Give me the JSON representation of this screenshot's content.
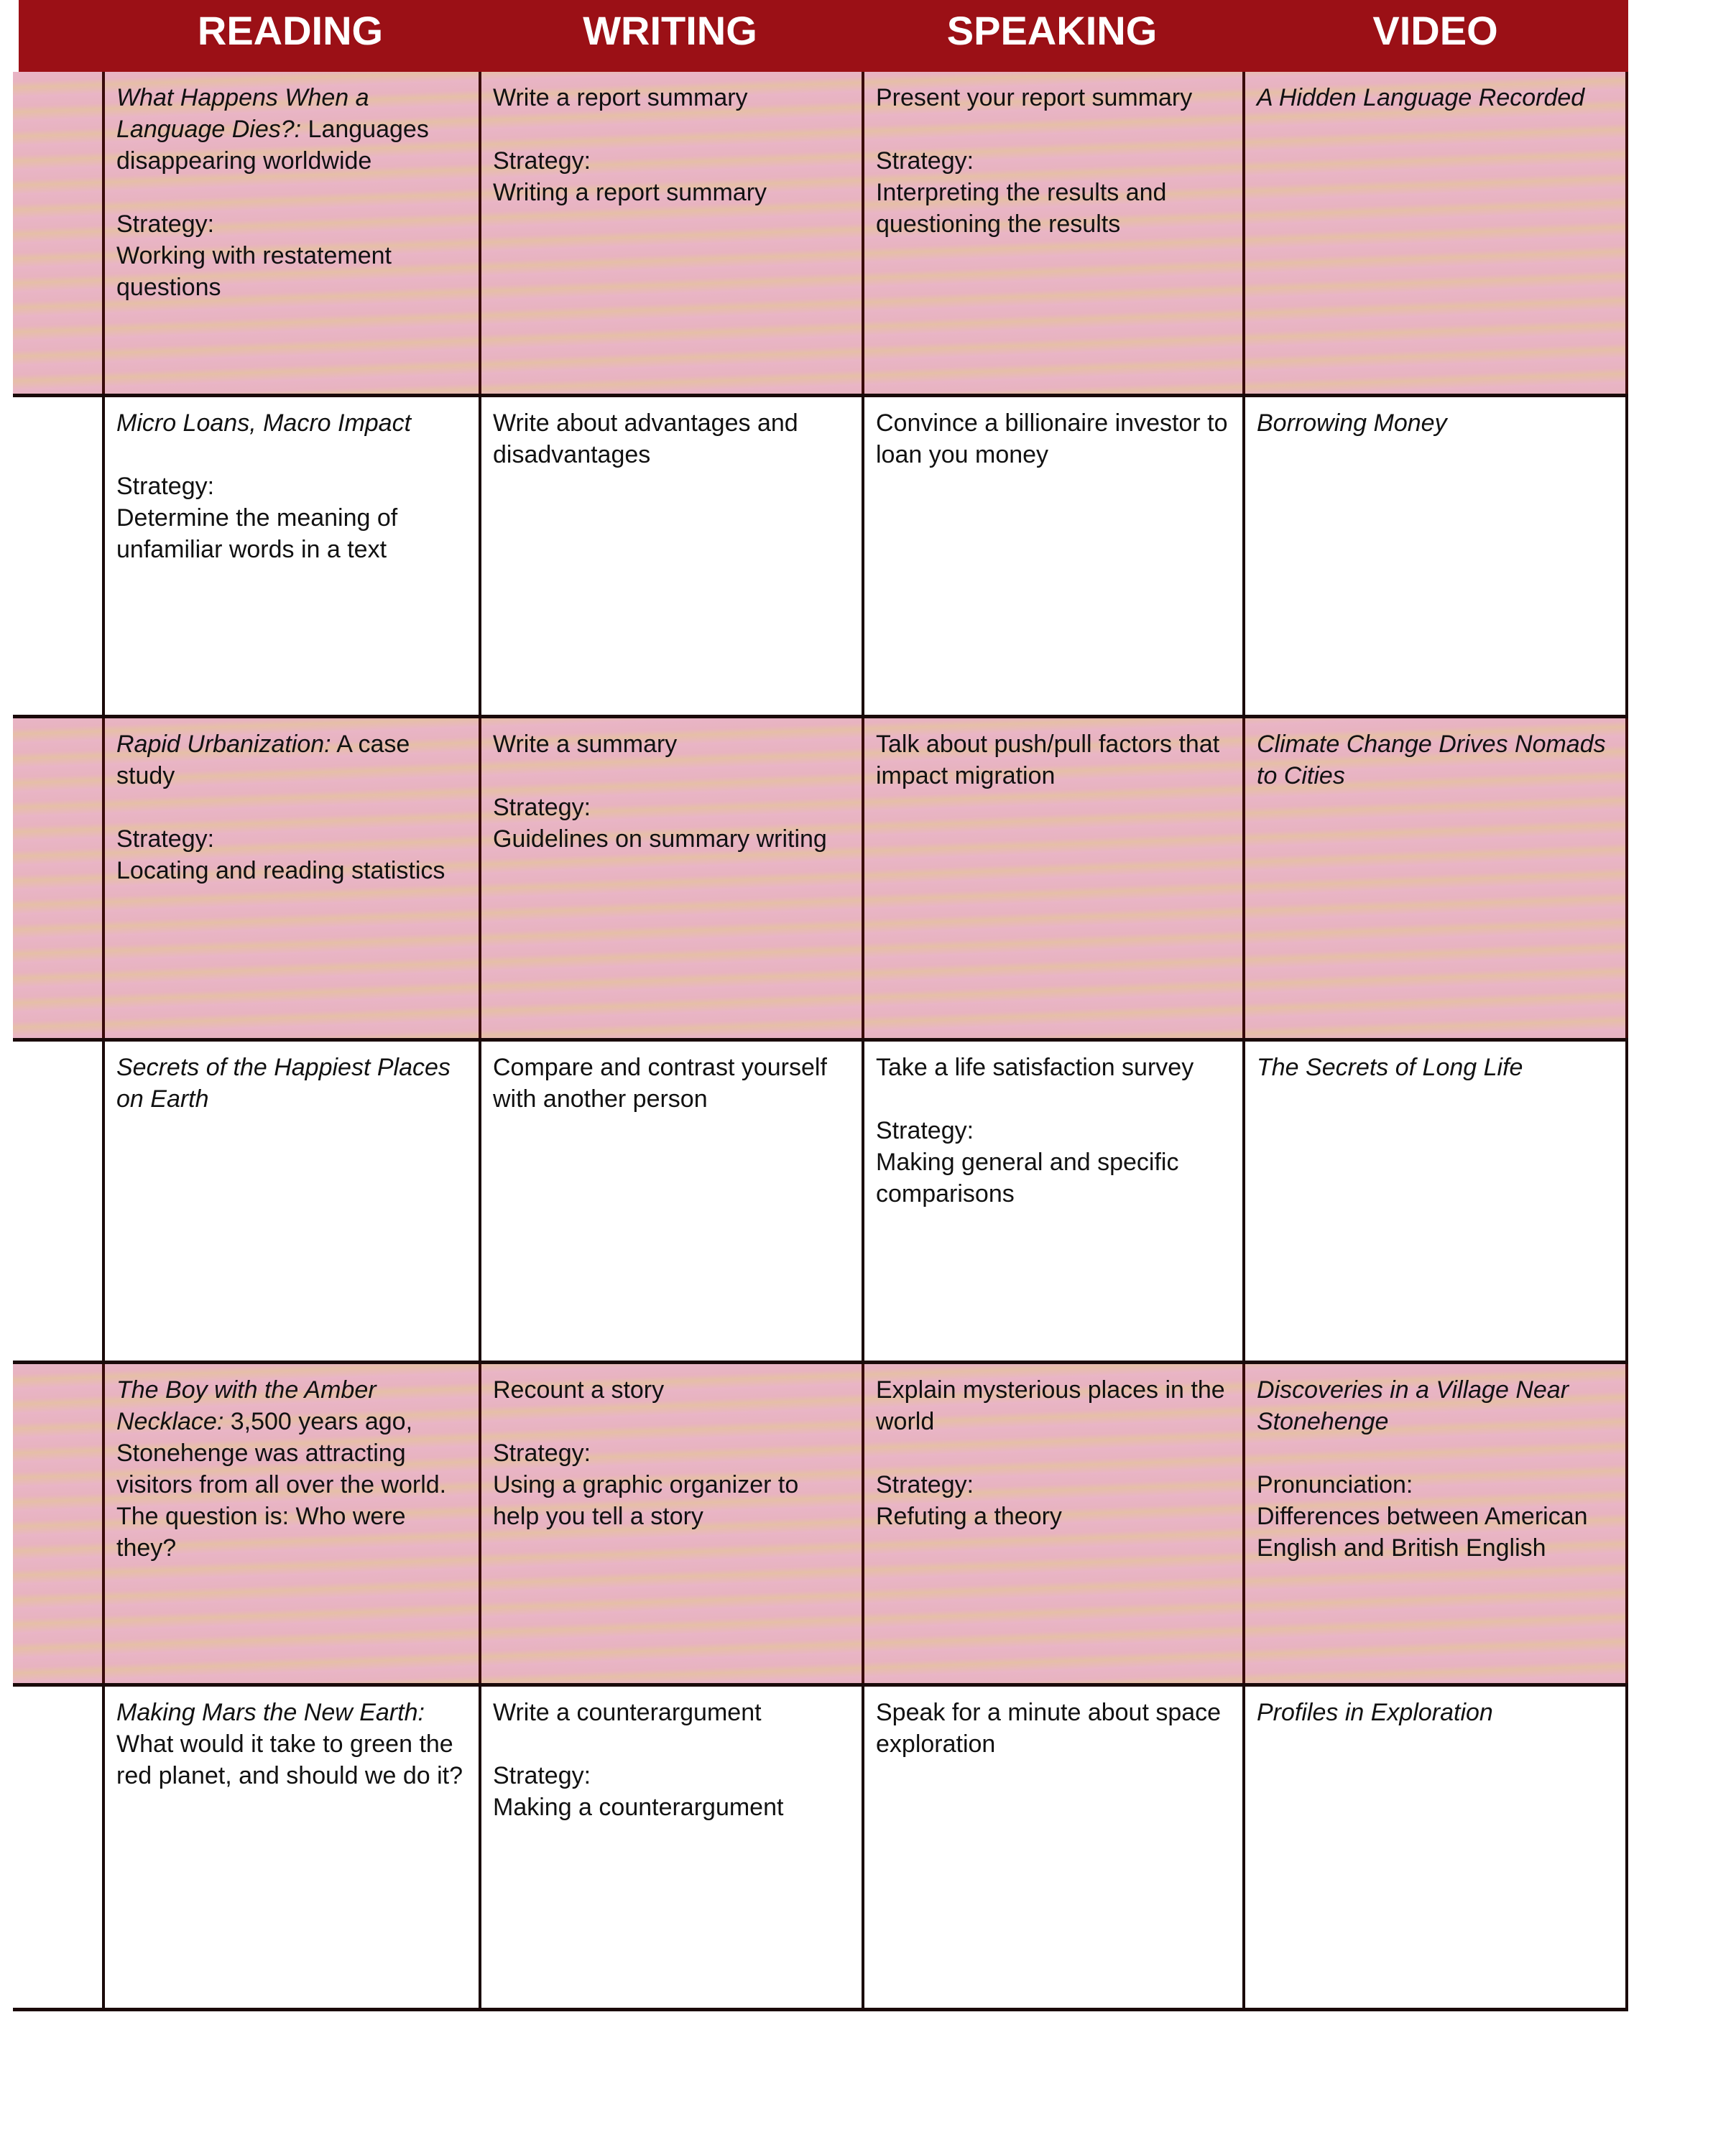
{
  "colors": {
    "header": "#9b1016",
    "shaded_row": "#e8b4c0",
    "border": "#1a0a0a"
  },
  "headers": [
    "READING",
    "WRITING",
    "SPEAKING",
    "VIDEO"
  ],
  "rows": [
    {
      "shaded": true,
      "cells": [
        {
          "italic": "What Happens When a Language Dies?:",
          "rest": " Languages disappearing worldwide",
          "label": "Strategy:",
          "text": "Working with restatement questions"
        },
        {
          "italic": "",
          "rest": "Write a report summary",
          "label": "Strategy:",
          "text": "Writing a report summary"
        },
        {
          "italic": "",
          "rest": "Present your report summary",
          "label": "Strategy:",
          "text": "Interpreting the results and questioning the results"
        },
        {
          "italic": "A Hidden Language Recorded",
          "rest": "",
          "label": "",
          "text": ""
        }
      ]
    },
    {
      "shaded": false,
      "cells": [
        {
          "italic": "Micro Loans, Macro Impact",
          "rest": "",
          "label": "Strategy:",
          "text": "Determine the meaning of unfamiliar words in a text"
        },
        {
          "italic": "",
          "rest": "Write about advantages and disadvantages",
          "label": "",
          "text": ""
        },
        {
          "italic": "",
          "rest": "Convince a billionaire investor to loan you money",
          "label": "",
          "text": ""
        },
        {
          "italic": "Borrowing Money",
          "rest": "",
          "label": "",
          "text": ""
        }
      ]
    },
    {
      "shaded": true,
      "cells": [
        {
          "italic": "Rapid Urbanization:",
          "rest": " A case study",
          "label": "Strategy:",
          "text": "Locating and reading statistics"
        },
        {
          "italic": "",
          "rest": "Write a summary",
          "label": "Strategy:",
          "text": "Guidelines on summary writing"
        },
        {
          "italic": "",
          "rest": "Talk about push/pull factors that impact migration",
          "label": "",
          "text": ""
        },
        {
          "italic": "Climate Change Drives Nomads to Cities",
          "rest": "",
          "label": "",
          "text": ""
        }
      ]
    },
    {
      "shaded": false,
      "cells": [
        {
          "italic": "Secrets of the Happiest Places on Earth",
          "rest": "",
          "label": "",
          "text": ""
        },
        {
          "italic": "",
          "rest": "Compare and contrast yourself with another person",
          "label": "",
          "text": ""
        },
        {
          "italic": "",
          "rest": "Take a life satisfaction survey",
          "label": "Strategy:",
          "text": "Making general and specific comparisons"
        },
        {
          "italic": "The Secrets of Long Life",
          "rest": "",
          "label": "",
          "text": ""
        }
      ]
    },
    {
      "shaded": true,
      "cells": [
        {
          "italic": "The Boy with the Amber Necklace:",
          "rest": " 3,500 years ago, Stonehenge was attracting visitors from all over the world. The question is: Who were they?",
          "label": "",
          "text": ""
        },
        {
          "italic": "",
          "rest": "Recount a story",
          "label": "Strategy:",
          "text": "Using a graphic organizer to help you tell a story"
        },
        {
          "italic": "",
          "rest": "Explain mysterious places in the world",
          "label": "Strategy:",
          "text": "Refuting a theory"
        },
        {
          "italic": "Discoveries in a Village Near Stonehenge",
          "rest": "",
          "label": "Pronunciation:",
          "text": "Differences between American English and British English"
        }
      ]
    },
    {
      "shaded": false,
      "cells": [
        {
          "italic": "Making Mars the New Earth:",
          "rest": " What would it take to green the red planet, and should we do it?",
          "label": "",
          "text": ""
        },
        {
          "italic": "",
          "rest": "Write a counterargument",
          "label": "Strategy:",
          "text": "Making a counterargument"
        },
        {
          "italic": "",
          "rest": "Speak for a minute about space exploration",
          "label": "",
          "text": ""
        },
        {
          "italic": "Profiles in Exploration",
          "rest": "",
          "label": "",
          "text": ""
        }
      ]
    }
  ]
}
